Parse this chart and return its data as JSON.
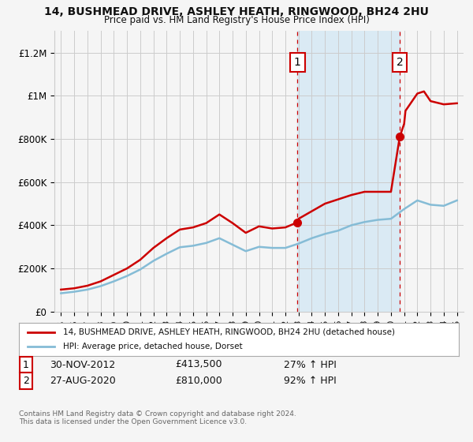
{
  "title1": "14, BUSHMEAD DRIVE, ASHLEY HEATH, RINGWOOD, BH24 2HU",
  "title2": "Price paid vs. HM Land Registry's House Price Index (HPI)",
  "legend_line1": "14, BUSHMEAD DRIVE, ASHLEY HEATH, RINGWOOD, BH24 2HU (detached house)",
  "legend_line2": "HPI: Average price, detached house, Dorset",
  "ann1_label": "1",
  "ann1_date": "30-NOV-2012",
  "ann1_price": "£413,500",
  "ann1_hpi": "27% ↑ HPI",
  "ann1_x": 2012.917,
  "ann1_y": 413500,
  "ann2_label": "2",
  "ann2_date": "27-AUG-2020",
  "ann2_price": "£810,000",
  "ann2_hpi": "92% ↑ HPI",
  "ann2_x": 2020.667,
  "ann2_y": 810000,
  "footer": "Contains HM Land Registry data © Crown copyright and database right 2024.\nThis data is licensed under the Open Government Licence v3.0.",
  "ylim": [
    0,
    1300000
  ],
  "yticks": [
    0,
    200000,
    400000,
    600000,
    800000,
    1000000,
    1200000
  ],
  "ytick_labels": [
    "£0",
    "£200K",
    "£400K",
    "£600K",
    "£800K",
    "£1M",
    "£1.2M"
  ],
  "xlim": [
    1994.5,
    2025.5
  ],
  "red_color": "#cc0000",
  "blue_color": "#85bcd6",
  "shade_color": "#daeaf4",
  "background_color": "#f5f5f5",
  "grid_color": "#cccccc",
  "hpi_years": [
    1995,
    1996,
    1997,
    1998,
    1999,
    2000,
    2001,
    2002,
    2003,
    2004,
    2005,
    2006,
    2007,
    2008,
    2009,
    2010,
    2011,
    2012,
    2013,
    2014,
    2015,
    2016,
    2017,
    2018,
    2019,
    2020,
    2021,
    2022,
    2023,
    2024,
    2025
  ],
  "hpi_values": [
    85000,
    92000,
    102000,
    118000,
    140000,
    165000,
    195000,
    235000,
    268000,
    298000,
    305000,
    318000,
    340000,
    310000,
    280000,
    300000,
    295000,
    295000,
    315000,
    340000,
    360000,
    375000,
    400000,
    415000,
    425000,
    430000,
    475000,
    515000,
    495000,
    490000,
    515000
  ],
  "red_years": [
    1995,
    1996,
    1997,
    1998,
    1999,
    2000,
    2001,
    2002,
    2003,
    2004,
    2005,
    2006,
    2007,
    2008,
    2009,
    2010,
    2011,
    2012,
    2012.917,
    2013,
    2014,
    2015,
    2016,
    2017,
    2018,
    2019,
    2020,
    2020.667,
    2021,
    2021.1,
    2022,
    2022.5,
    2023,
    2024,
    2025
  ],
  "red_values": [
    102000,
    108000,
    120000,
    140000,
    170000,
    200000,
    240000,
    295000,
    340000,
    380000,
    390000,
    410000,
    450000,
    410000,
    365000,
    395000,
    385000,
    390000,
    413500,
    430000,
    465000,
    500000,
    520000,
    540000,
    555000,
    555000,
    555000,
    810000,
    870000,
    930000,
    1010000,
    1020000,
    975000,
    960000,
    965000
  ]
}
